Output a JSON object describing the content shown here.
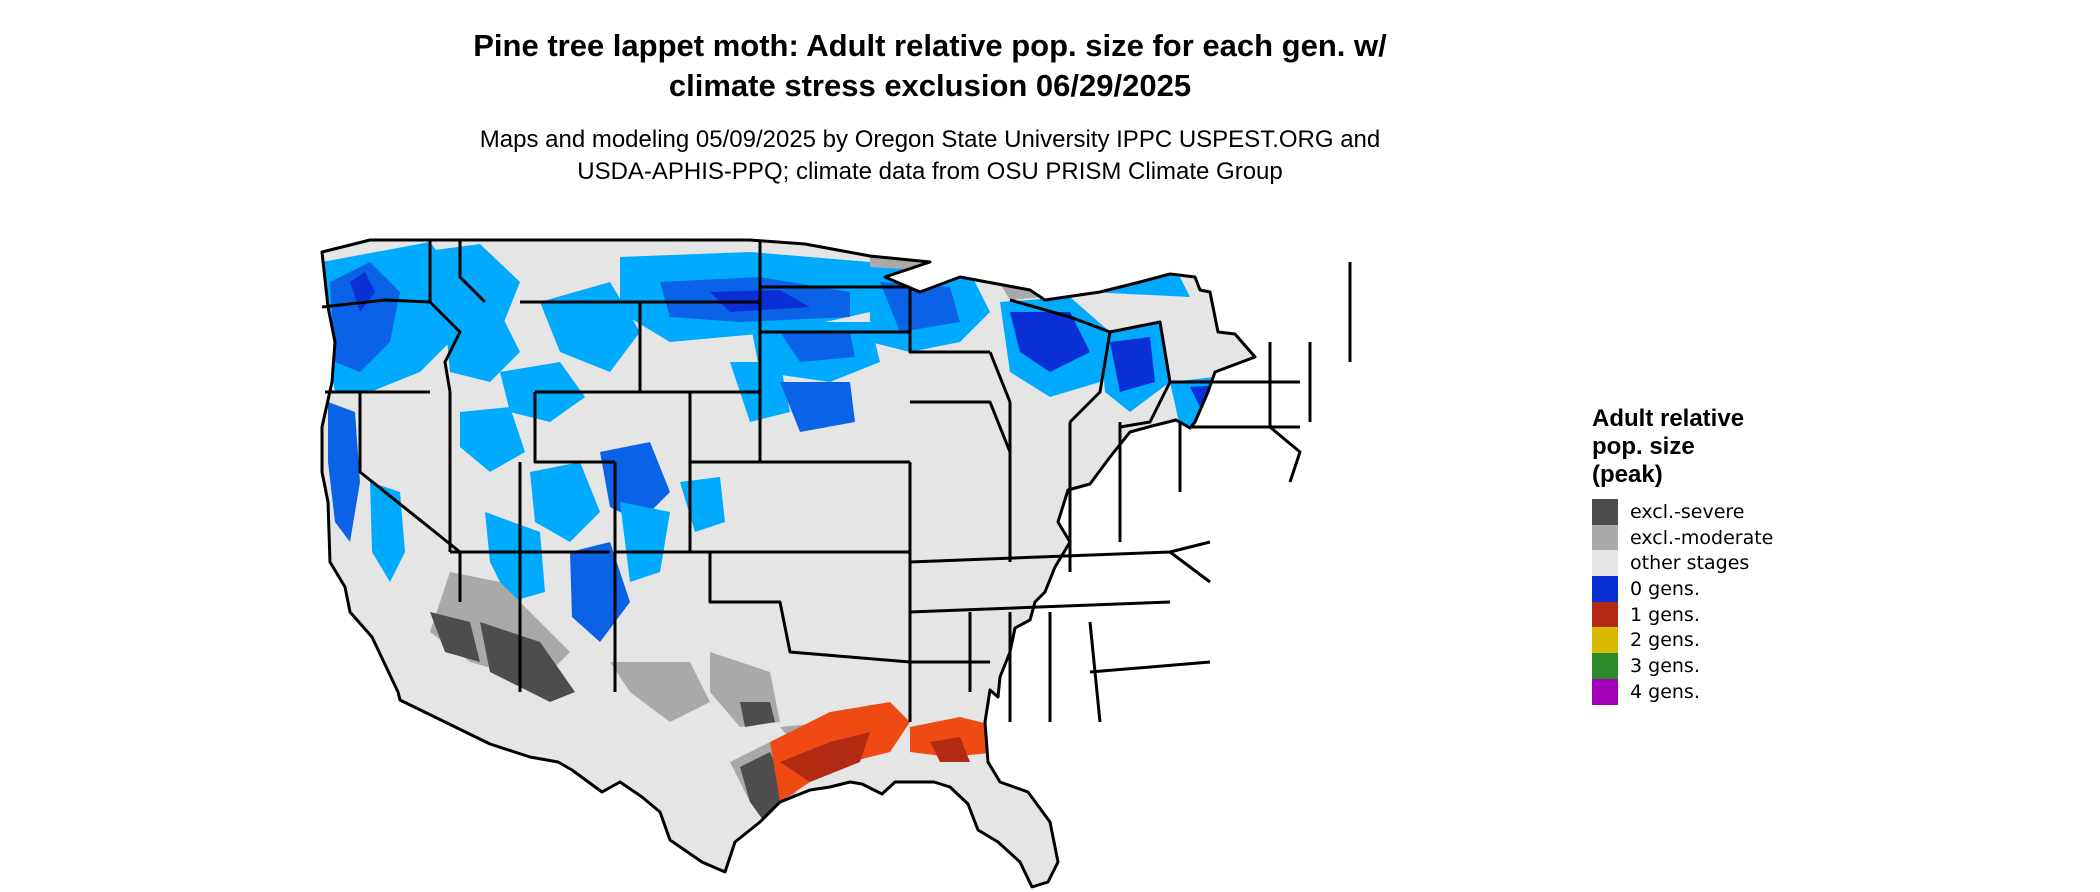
{
  "title": {
    "line1": "Pine tree lappet moth: Adult relative pop. size for each gen. w/",
    "line2": "climate stress exclusion 06/29/2025"
  },
  "subtitle": {
    "line1": "Maps and modeling 05/09/2025 by Oregon State University IPPC USPEST.ORG and",
    "line2": "USDA-APHIS-PPQ; climate data from OSU PRISM Climate Group"
  },
  "legend": {
    "title_lines": [
      "Adult relative",
      "pop. size",
      "(peak)"
    ],
    "items": [
      {
        "label": "excl.-severe",
        "color": "#4d4d4d"
      },
      {
        "label": "excl.-moderate",
        "color": "#a9a9a9"
      },
      {
        "label": "other stages",
        "color": "#e5e5e5"
      },
      {
        "label": "0 gens.",
        "color": "#0a2fd6"
      },
      {
        "label": "1 gens.",
        "color": "#b22a14"
      },
      {
        "label": "2 gens.",
        "color": "#d9b800"
      },
      {
        "label": "3 gens.",
        "color": "#2a8a2a"
      },
      {
        "label": "4 gens.",
        "color": "#a100b8"
      }
    ]
  },
  "map_colors": {
    "background_land": "#e5e5e5",
    "low_population_blue": "#00aaff",
    "mid_population_blue": "#0a63e6",
    "high_population_blue": "#0a2fd6",
    "gen1_light": "#f04a14",
    "gen1_dark": "#b22a14",
    "excl_severe": "#4d4d4d",
    "excl_moderate": "#a9a9a9",
    "border": "#000000"
  }
}
